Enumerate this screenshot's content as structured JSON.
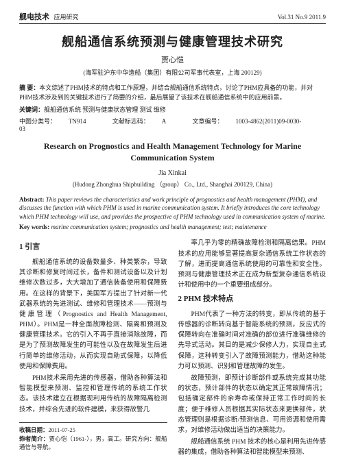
{
  "header": {
    "journal_name": "舰电技术",
    "journal_sub": "应用研究",
    "issue": "Vol.31  No.9  2011.9"
  },
  "title_cn": "舰船通信系统预测与健康管理技术研究",
  "author_cn": "贾心恺",
  "affil_cn": "(海军驻沪东中华造船（集团）有限公司军事代表室，上海 200129)",
  "abstract_cn_label": "摘  要：",
  "abstract_cn": "本文综述了PHM技术的特点和工作原理，并结合舰船通信系统特点，讨论了PHM应具备的功能，并对PHM技术涉及到的关键技术进行了简要的介绍，最后展望了该技术在舰船通信系统中的应用前景。",
  "kw_cn_label": "关键词：",
  "kw_cn": "舰船通信系统  预测与健康状态管理  测试  维修",
  "classify": {
    "clc_label": "中图分类号：",
    "clc": "TN914",
    "doc_label": "文献标志码：",
    "doc": "A",
    "art_label": "文章编号：",
    "art": "1003-4862(2011)09-0030-03"
  },
  "title_en": "Research on Prognostics and Health Management Technology for Marine Communication System",
  "author_en": "Jia Xinkai",
  "affil_en": "(Hudong Zhonghua Shipbuilding （group） Co., Ltd., Shanghai 200129, China)",
  "abstract_en_label": "Abstract:",
  "abstract_en": " This paper reviews the characteristics and work principle of prognostics and health management (PHM), and discusses the function with which PHM is used in marine communication system. It briefly introduces the core technology which PHM technology will use, and provides the prospective of PHM technology used in communication system of marine.",
  "kw_en_label": "Key words:",
  "kw_en": " marine communication system; prognostics and health management; test; maintenance",
  "sections": {
    "s1_head": "1  引言",
    "s1_p1": "舰船通信系统的设备数量多、种类繁杂，导致其诊断和修复时间过长，备件和测试设备以及计划维修次数过多，大大增加了通信装备使用和保障费用。在这样的背景下，美国军方提出了针对新一代武器系统的先进测试、维修和管理技术——预测与健康管理（Prognostics and Health Management, PHM）。PHM是一种全面故障检测、隔离和预测及健康管理技术。它的引入不再于直接消除故障，而是为了预测故障发生的可能性以及在故障发生后进行简单的维修活动，从而实现自助式保障，以降低使用和保障费用。",
    "s1_p2": "PHM技术采用先进的传感器，借助各种算法和智能模型来预测、监控和管理传统的系统工作状态。该技术建立在根据现利用传统的故障隔离检测技术，并综合先进的软件建模，来获得故警几",
    "s1_right": "率几乎为零的精确故障检测和隔离结果。PHM技术的应用能够显著提高复杂通信系统工作状态的了解，进而提高通信系统使用的可靠性和安全性。预测与健康管理技术正在成为新型复杂通信系统设计和使用中的一个重要组成部分。",
    "s2_head": "2  PHM 技术特点",
    "s2_p1": "PHM代表了一种方法的转变，即从传统的基于传感器的诊断转向基于智能系统的预测，反应式的保障转向在准确时间对准确的部位进行准确维修的先导式活动。其目的是减少保修人力，实现自主式保障，这种转变引入了故障预测能力，借助这种能力可以预测、识别和管理故障的发生。",
    "s2_p2": "故障预测，即预计诊断部件或系统完成其功能的状态，预计部件的状态以确定其正常故障情况；包括确定部件的余寿命或保持正常工作时间的长度；便于维修人员根据其实际状态来更换部件，状态管理则是根据诊断/预测信息、可用资源和使用需求，对维修活动做出适当的决策能力。",
    "s2_p3": "舰船通信系统 PHM 技术的核心是利用先进传感器的集成，借助各种算法和智能模型来预测、"
  },
  "footer": {
    "recv_label": "收稿日期：",
    "recv": "2011-07-25",
    "auth_label": "作者简介：",
    "auth": "贾心恺（1961-），男，高工。研究方向：舰船通信与导航。"
  },
  "page_num": "30"
}
